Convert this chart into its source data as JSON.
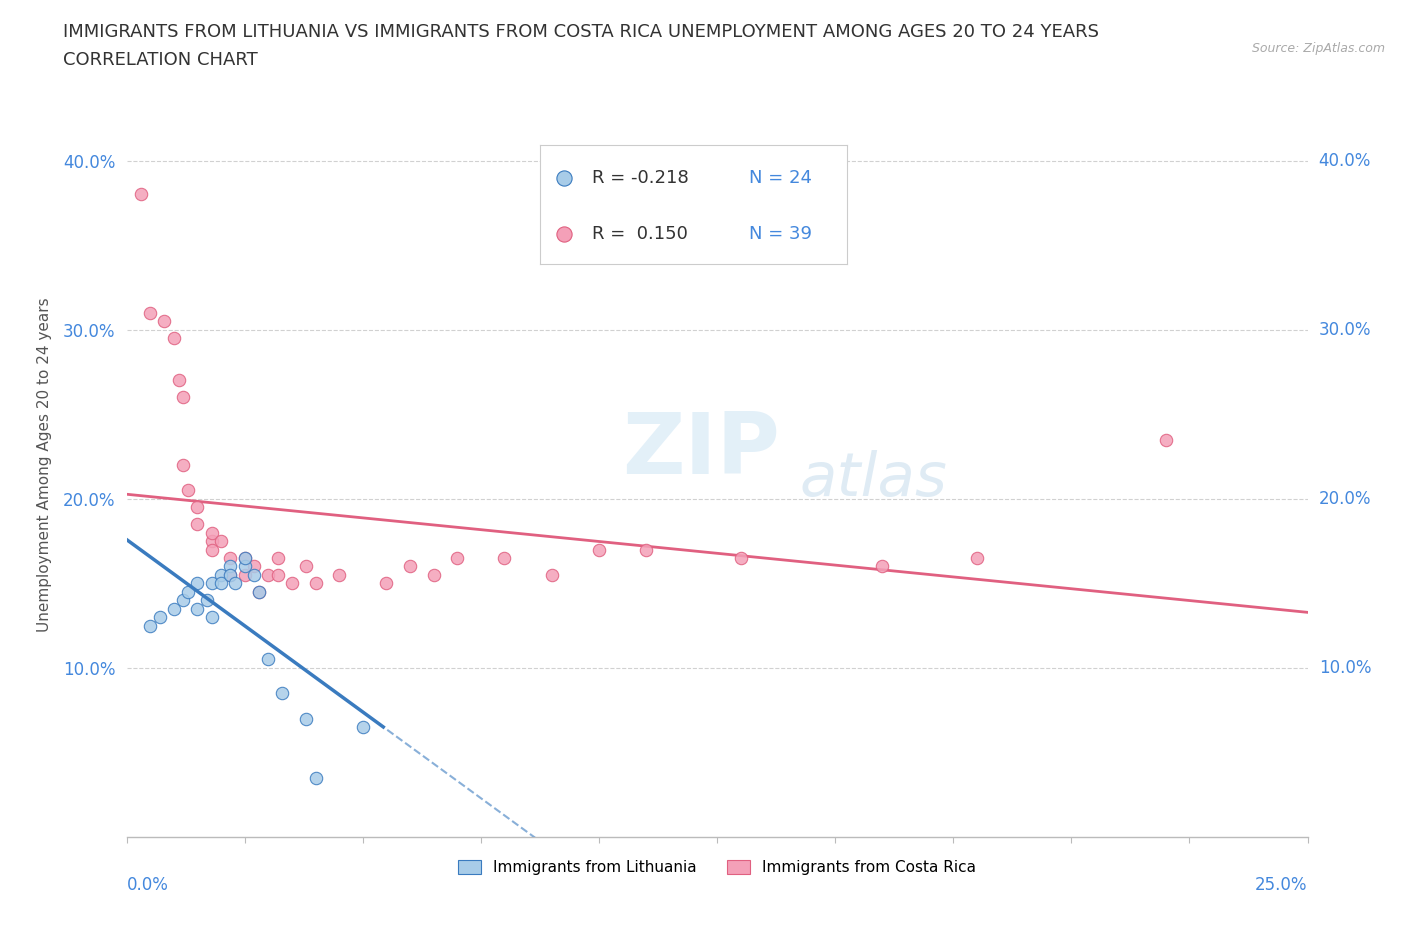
{
  "title_line1": "IMMIGRANTS FROM LITHUANIA VS IMMIGRANTS FROM COSTA RICA UNEMPLOYMENT AMONG AGES 20 TO 24 YEARS",
  "title_line2": "CORRELATION CHART",
  "source_text": "Source: ZipAtlas.com",
  "ylabel": "Unemployment Among Ages 20 to 24 years",
  "watermark_zip": "ZIP",
  "watermark_atlas": "atlas",
  "blue_color": "#a8cce8",
  "pink_color": "#f4a0b8",
  "blue_line_color": "#3a7bbf",
  "pink_line_color": "#e06080",
  "blue_scatter_x": [
    0.005,
    0.007,
    0.01,
    0.012,
    0.013,
    0.015,
    0.015,
    0.017,
    0.018,
    0.018,
    0.02,
    0.02,
    0.022,
    0.022,
    0.023,
    0.025,
    0.025,
    0.027,
    0.028,
    0.03,
    0.033,
    0.038,
    0.04,
    0.05
  ],
  "blue_scatter_y": [
    0.125,
    0.13,
    0.135,
    0.14,
    0.145,
    0.135,
    0.15,
    0.14,
    0.15,
    0.13,
    0.155,
    0.15,
    0.16,
    0.155,
    0.15,
    0.16,
    0.165,
    0.155,
    0.145,
    0.105,
    0.085,
    0.07,
    0.035,
    0.065
  ],
  "pink_scatter_x": [
    0.003,
    0.005,
    0.008,
    0.01,
    0.011,
    0.012,
    0.012,
    0.013,
    0.015,
    0.015,
    0.018,
    0.018,
    0.018,
    0.02,
    0.022,
    0.022,
    0.025,
    0.025,
    0.027,
    0.028,
    0.03,
    0.032,
    0.032,
    0.035,
    0.038,
    0.04,
    0.045,
    0.055,
    0.06,
    0.065,
    0.07,
    0.08,
    0.09,
    0.1,
    0.11,
    0.13,
    0.16,
    0.18,
    0.22
  ],
  "pink_scatter_y": [
    0.38,
    0.31,
    0.305,
    0.295,
    0.27,
    0.26,
    0.22,
    0.205,
    0.195,
    0.185,
    0.175,
    0.18,
    0.17,
    0.175,
    0.165,
    0.155,
    0.165,
    0.155,
    0.16,
    0.145,
    0.155,
    0.165,
    0.155,
    0.15,
    0.16,
    0.15,
    0.155,
    0.15,
    0.16,
    0.155,
    0.165,
    0.165,
    0.155,
    0.17,
    0.17,
    0.165,
    0.16,
    0.165,
    0.235
  ],
  "xlim": [
    0.0,
    0.25
  ],
  "ylim": [
    0.0,
    0.44
  ],
  "xaxis_label_left": "0.0%",
  "xaxis_label_right": "25.0%",
  "yaxis_ticks": [
    0.1,
    0.2,
    0.3,
    0.4
  ],
  "yaxis_tick_labels": [
    "10.0%",
    "20.0%",
    "30.0%",
    "40.0%"
  ],
  "background_color": "#ffffff",
  "grid_color": "#cccccc",
  "title_fontsize": 13,
  "axis_label_fontsize": 11,
  "tick_fontsize": 12,
  "dot_size": 80,
  "legend_label_blue": "Immigrants from Lithuania",
  "legend_label_pink": "Immigrants from Costa Rica"
}
